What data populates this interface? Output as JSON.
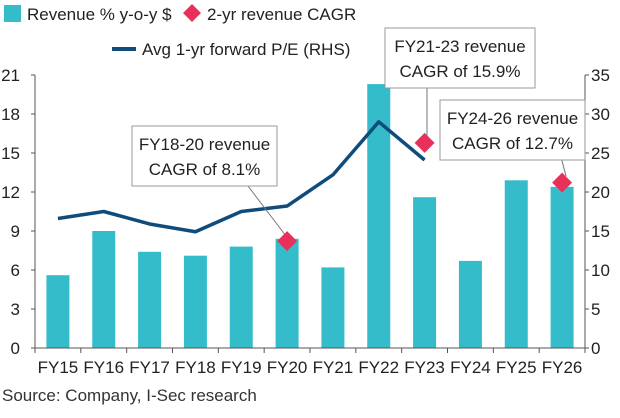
{
  "chart_data": {
    "type": "bar",
    "categories": [
      "FY15",
      "FY16",
      "FY17",
      "FY18",
      "FY19",
      "FY20",
      "FY21",
      "FY22",
      "FY23",
      "FY24",
      "FY25",
      "FY26"
    ],
    "series": [
      {
        "name": "Revenue % y-o-y $",
        "type": "bar",
        "axis": "left",
        "values": [
          5.6,
          9.0,
          7.4,
          7.1,
          7.8,
          8.4,
          6.2,
          20.3,
          11.6,
          6.7,
          12.9,
          12.4
        ]
      },
      {
        "name": "Avg 1-yr forward P/E (RHS)",
        "type": "line",
        "axis": "right",
        "values": [
          16.6,
          17.5,
          15.9,
          14.9,
          17.5,
          18.2,
          22.2,
          29.0,
          24.1,
          null,
          null,
          null
        ]
      },
      {
        "name": "2-yr revenue CAGR",
        "type": "marker",
        "points": [
          {
            "x": "FY20",
            "y": 13.7
          },
          {
            "x": "FY23",
            "y": 26.3
          },
          {
            "x": "FY26",
            "y": 21.2
          }
        ]
      }
    ],
    "left_axis": {
      "ylim": [
        0,
        21
      ],
      "ticks": [
        "0",
        "3",
        "6",
        "9",
        "12",
        "15",
        "18",
        "21"
      ]
    },
    "right_axis": {
      "ylim": [
        0,
        35
      ],
      "ticks": [
        "0",
        "5",
        "10",
        "15",
        "20",
        "25",
        "30",
        "35"
      ]
    },
    "annotations": [
      {
        "lines": [
          "FY18-20 revenue",
          "CAGR of 8.1%"
        ],
        "target": "FY20"
      },
      {
        "lines": [
          "FY21-23 revenue",
          "CAGR of 15.9%"
        ],
        "target": "FY23"
      },
      {
        "lines": [
          "FY24-26 revenue",
          "CAGR of 12.7%"
        ],
        "target": "FY26"
      }
    ],
    "legend": {
      "placement": "top",
      "items": [
        "Revenue % y-o-y $",
        "2-yr revenue CAGR",
        "Avg 1-yr forward P/E (RHS)"
      ]
    },
    "grid": false,
    "colors": {
      "bar": "#34BCCB",
      "line": "#0F4C7C",
      "marker": "#E8305A",
      "axis": "#555555"
    }
  },
  "source": "Source: Company, I-Sec research"
}
